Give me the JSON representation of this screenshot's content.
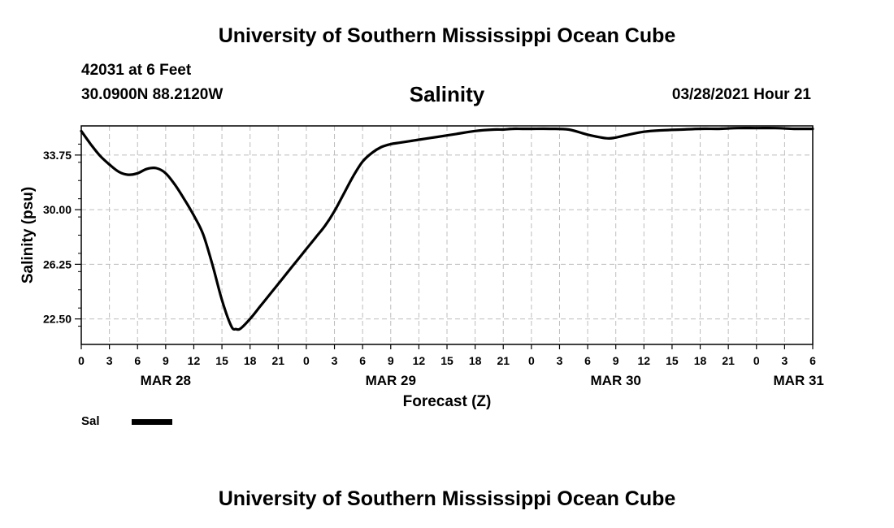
{
  "header": {
    "title": "University of Southern Mississippi Ocean Cube",
    "station": "42031 at 6 Feet",
    "coords": "30.0900N  88.2120W",
    "parameter": "Salinity",
    "datetime": "03/28/2021 Hour 21"
  },
  "footer": {
    "title": "University of Southern Mississippi Ocean Cube"
  },
  "legend": {
    "label": "Sal",
    "color": "#000000"
  },
  "chart_data": {
    "type": "line",
    "title": "Salinity",
    "xlabel": "Forecast (Z)",
    "ylabel": "Salinity (psu)",
    "xlim": [
      0,
      78
    ],
    "ylim": [
      20.75,
      35.75
    ],
    "grid": true,
    "x_ticks": [
      0,
      3,
      6,
      9,
      12,
      15,
      18,
      21,
      24,
      27,
      30,
      33,
      36,
      39,
      42,
      45,
      48,
      51,
      54,
      57,
      60,
      63,
      66,
      69,
      72,
      75,
      78
    ],
    "x_tick_labels": [
      "0",
      "3",
      "6",
      "9",
      "12",
      "15",
      "18",
      "21",
      "0",
      "3",
      "6",
      "9",
      "12",
      "15",
      "18",
      "21",
      "0",
      "3",
      "6",
      "9",
      "12",
      "15",
      "18",
      "21",
      "0",
      "3",
      "6"
    ],
    "y_ticks": [
      22.5,
      26.25,
      30.0,
      33.75
    ],
    "y_tick_labels": [
      "22.50",
      "26.25",
      "30.00",
      "33.75"
    ],
    "date_labels": [
      {
        "hour": 9,
        "label": "MAR 28"
      },
      {
        "hour": 33,
        "label": "MAR 29"
      },
      {
        "hour": 57,
        "label": "MAR 30"
      },
      {
        "hour": 76.5,
        "label": "MAR 31"
      }
    ],
    "series": [
      {
        "name": "Sal",
        "x": [
          0,
          1,
          2,
          3,
          4,
          5,
          6,
          7,
          8,
          9,
          10,
          11,
          12,
          13,
          14,
          15,
          16,
          16.5,
          17,
          18,
          19,
          20,
          21,
          22,
          23,
          24,
          25,
          26,
          27,
          28,
          29,
          30,
          31,
          32,
          33,
          34,
          35,
          36,
          38,
          40,
          42,
          44,
          45,
          46,
          47,
          48,
          50,
          52,
          54,
          56,
          57,
          58,
          60,
          62,
          64,
          66,
          68,
          70,
          72,
          74,
          76,
          78
        ],
        "y": [
          35.4,
          34.5,
          33.7,
          33.1,
          32.6,
          32.4,
          32.5,
          32.8,
          32.85,
          32.5,
          31.7,
          30.7,
          29.6,
          28.3,
          26.2,
          23.8,
          22.0,
          21.8,
          21.85,
          22.5,
          23.3,
          24.1,
          24.9,
          25.7,
          26.5,
          27.3,
          28.1,
          28.9,
          29.9,
          31.1,
          32.3,
          33.3,
          33.9,
          34.3,
          34.5,
          34.6,
          34.7,
          34.8,
          35.0,
          35.2,
          35.4,
          35.5,
          35.5,
          35.55,
          35.55,
          35.55,
          35.55,
          35.5,
          35.15,
          34.9,
          34.95,
          35.1,
          35.35,
          35.45,
          35.5,
          35.55,
          35.55,
          35.6,
          35.6,
          35.6,
          35.55,
          35.55
        ]
      }
    ]
  }
}
